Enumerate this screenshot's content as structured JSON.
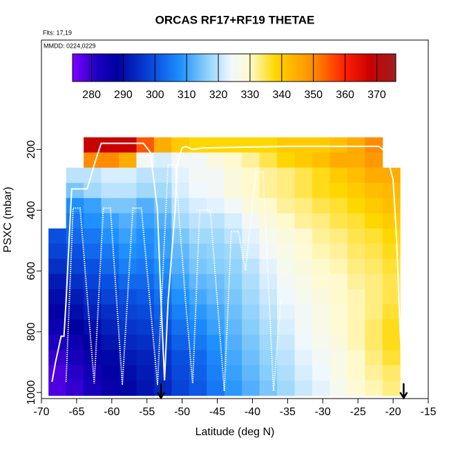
{
  "chart_data": {
    "type": "heatmap",
    "title": "ORCAS RF17+RF19 THETAE",
    "annotations": [
      "Flts: 17,19",
      "MMDD: 0224,0229"
    ],
    "xlabel": "Latitude (deg N)",
    "ylabel": "PSXC (mbar)",
    "xlim": [
      -70,
      -15
    ],
    "xticks": [
      -70,
      -65,
      -60,
      -55,
      -50,
      -45,
      -40,
      -35,
      -30,
      -25,
      -20,
      -15
    ],
    "ylim": [
      1020,
      -160
    ],
    "yticks": [
      200,
      400,
      600,
      800,
      1000
    ],
    "xbins": [
      -69,
      -66.5,
      -64,
      -61.5,
      -59,
      -56.5,
      -54,
      -51.5,
      -49,
      -46.5,
      -44,
      -41.5,
      -39,
      -36.5,
      -34,
      -31.5,
      -29,
      -26.5,
      -24,
      -21.5,
      -19
    ],
    "ybins": [
      160,
      210,
      260,
      310,
      360,
      410,
      460,
      510,
      560,
      610,
      660,
      710,
      760,
      810,
      860,
      910,
      960,
      1010
    ],
    "z": [
      [
        null,
        null,
        368,
        368,
        368,
        355,
        345,
        340,
        338,
        338,
        338,
        338,
        338,
        340,
        340,
        340,
        342,
        345,
        350,
        null
      ],
      [
        null,
        null,
        350,
        350,
        345,
        325,
        322,
        325,
        325,
        328,
        330,
        332,
        335,
        338,
        340,
        342,
        345,
        345,
        348,
        null
      ],
      [
        null,
        320,
        320,
        322,
        322,
        320,
        320,
        323,
        325,
        325,
        328,
        330,
        332,
        333,
        335,
        337,
        340,
        342,
        345,
        345
      ],
      [
        null,
        315,
        318,
        320,
        320,
        318,
        318,
        322,
        324,
        325,
        328,
        330,
        332,
        333,
        335,
        337,
        338,
        340,
        342,
        343
      ],
      [
        null,
        308,
        310,
        315,
        315,
        312,
        315,
        320,
        322,
        323,
        325,
        328,
        330,
        332,
        333,
        335,
        336,
        338,
        340,
        342
      ],
      [
        null,
        305,
        308,
        310,
        312,
        310,
        312,
        318,
        320,
        320,
        322,
        325,
        328,
        330,
        332,
        333,
        335,
        336,
        338,
        340
      ],
      [
        300,
        303,
        305,
        308,
        310,
        308,
        310,
        315,
        318,
        318,
        320,
        323,
        326,
        328,
        330,
        332,
        333,
        335,
        336,
        338
      ],
      [
        298,
        300,
        303,
        305,
        308,
        307,
        310,
        313,
        316,
        317,
        318,
        322,
        325,
        327,
        329,
        331,
        332,
        334,
        335,
        337
      ],
      [
        295,
        298,
        300,
        303,
        306,
        305,
        308,
        312,
        315,
        316,
        317,
        320,
        323,
        326,
        328,
        330,
        331,
        333,
        334,
        336
      ],
      [
        292,
        295,
        298,
        300,
        303,
        303,
        306,
        310,
        313,
        314,
        316,
        319,
        322,
        325,
        327,
        329,
        330,
        332,
        333,
        335
      ],
      [
        290,
        292,
        295,
        298,
        300,
        301,
        304,
        308,
        311,
        313,
        315,
        318,
        321,
        324,
        326,
        328,
        330,
        331,
        333,
        335
      ],
      [
        287,
        290,
        293,
        295,
        298,
        299,
        302,
        306,
        309,
        311,
        314,
        317,
        320,
        323,
        325,
        327,
        329,
        331,
        333,
        336
      ],
      [
        285,
        288,
        290,
        293,
        296,
        297,
        300,
        304,
        307,
        310,
        313,
        316,
        319,
        322,
        325,
        327,
        329,
        331,
        334,
        337
      ],
      [
        282,
        285,
        288,
        291,
        294,
        295,
        298,
        302,
        305,
        308,
        312,
        315,
        318,
        321,
        324,
        326,
        328,
        331,
        334,
        337
      ],
      [
        280,
        283,
        286,
        289,
        292,
        293,
        296,
        300,
        303,
        307,
        311,
        314,
        317,
        320,
        323,
        325,
        327,
        330,
        333,
        336
      ],
      [
        278,
        281,
        284,
        287,
        290,
        292,
        295,
        299,
        302,
        306,
        310,
        313,
        316,
        319,
        322,
        324,
        327,
        330,
        332,
        334
      ],
      [
        278,
        280,
        283,
        286,
        289,
        291,
        294,
        298,
        301,
        305,
        309,
        312,
        315,
        318,
        321,
        323,
        326,
        329,
        331,
        333
      ]
    ],
    "colorscale": [
      [
        274,
        "#7f00ff"
      ],
      [
        282,
        "#1a00c0"
      ],
      [
        288,
        "#0000a0"
      ],
      [
        300,
        "#0a50e0"
      ],
      [
        308,
        "#1e90ff"
      ],
      [
        316,
        "#87cefa"
      ],
      [
        324,
        "#f0f8ff"
      ],
      [
        330,
        "#fffacd"
      ],
      [
        338,
        "#ffd700"
      ],
      [
        350,
        "#ff8c00"
      ],
      [
        360,
        "#ff2000"
      ],
      [
        368,
        "#c80000"
      ],
      [
        376,
        "#a02020"
      ]
    ],
    "colorbar_ticks": [
      280,
      290,
      300,
      310,
      320,
      330,
      340,
      350,
      360,
      370
    ],
    "tracks": [
      {
        "style": "solid",
        "color": "#ffffff",
        "x": [
          -68.5,
          -68,
          -67.2,
          -66.8,
          -66.5,
          -65.7,
          -63.5,
          -62.5,
          -61.5,
          -55.5,
          -54.5,
          -53.5,
          -53,
          -52.5,
          -52,
          -51,
          -50.7,
          -50,
          -49.5,
          -48.5,
          -47,
          -35,
          -34,
          -22,
          -21,
          -20,
          -19.5,
          -19,
          -18.6
        ],
        "y": [
          965,
          900,
          815,
          815,
          700,
          330,
          330,
          250,
          180,
          180,
          210,
          400,
          700,
          960,
          700,
          400,
          250,
          195,
          190,
          200,
          195,
          190,
          190,
          190,
          210,
          300,
          500,
          800,
          965
        ]
      },
      {
        "style": "dotted",
        "color": "#ffffff",
        "x": [
          -66.5,
          -65.5,
          -64.5,
          -62.5,
          -61.2,
          -60.2,
          -58.5,
          -57,
          -55.8,
          -53.5,
          -52,
          -51,
          -49.5,
          -48.5,
          -47.5,
          -46,
          -44,
          -43,
          -42,
          -41,
          -39.5,
          -38.5,
          -37,
          -36
        ],
        "y": [
          965,
          393,
          393,
          970,
          393,
          393,
          975,
          393,
          393,
          975,
          250,
          250,
          700,
          970,
          400,
          400,
          995,
          470,
          470,
          600,
          275,
          275,
          995,
          700
        ]
      }
    ],
    "markers_x": [
      -53,
      -18.5
    ]
  }
}
